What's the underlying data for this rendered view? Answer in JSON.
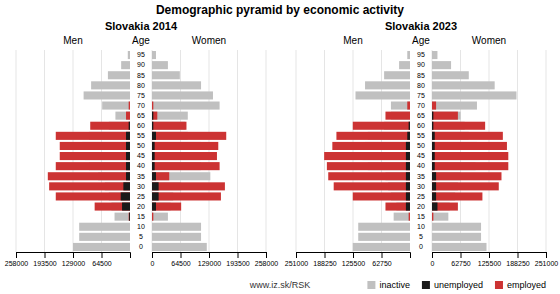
{
  "chart_data": [
    {
      "type": "bar",
      "orientation": "horizontal",
      "stacked": false,
      "grid": true,
      "title": "Demographic pyramid by economic activity",
      "subtitle": "Slovakia 2014",
      "ylabel": "Age",
      "annotation": "www.iz.sk/RSK",
      "categories": [
        "0",
        "5",
        "10",
        "15",
        "20",
        "25",
        "30",
        "35",
        "40",
        "45",
        "50",
        "55",
        "60",
        "65",
        "70",
        "75",
        "80",
        "85",
        "90",
        "95"
      ],
      "groups": [
        {
          "name": "Men",
          "xlim": [
            258000,
            0
          ],
          "xticks": [
            258000,
            193500,
            129000,
            64500
          ]
        },
        {
          "name": "Women",
          "xlim": [
            0,
            258000
          ],
          "xticks": [
            0,
            64500,
            129000,
            193500,
            258000
          ]
        }
      ],
      "series": [
        {
          "name": "inactive",
          "color": "#c0c0c0",
          "values": [
            [
              129000,
              115000,
              115000,
              35000,
              42000,
              48000,
              57000,
              72000,
              93000,
              102000,
              108000,
              93000,
              48000,
              33000,
              63000,
              105000,
              88000,
              50000,
              20000,
              5000
            ],
            [
              124000,
              111000,
              111000,
              36000,
              42000,
              48000,
              66000,
              132000,
              111000,
              111000,
              111000,
              81000,
              75000,
              81000,
              153000,
              138000,
              111000,
              63000,
              36000,
              9000
            ]
          ]
        },
        {
          "name": "unemployed",
          "color": "#1a1a1a",
          "values": [
            [
              0,
              0,
              0,
              2000,
              18000,
              21000,
              15000,
              9000,
              9000,
              9000,
              9000,
              9000,
              3000,
              0,
              0,
              0,
              0,
              0,
              0,
              0
            ],
            [
              0,
              0,
              0,
              0,
              9000,
              15000,
              15000,
              9000,
              6000,
              6000,
              6000,
              9000,
              3000,
              3000,
              0,
              0,
              0,
              0,
              0,
              0
            ]
          ]
        },
        {
          "name": "employed",
          "color": "#cc3333",
          "values": [
            [
              0,
              0,
              0,
              3000,
              80000,
              168000,
              183000,
              186000,
              168000,
              159000,
              159000,
              168000,
              90000,
              9000,
              3000,
              0,
              0,
              0,
              0,
              0
            ],
            [
              0,
              0,
              0,
              3000,
              66000,
              156000,
              165000,
              39000,
              153000,
              147000,
              150000,
              168000,
              78000,
              12000,
              3000,
              0,
              0,
              0,
              0,
              0
            ]
          ]
        }
      ]
    },
    {
      "type": "bar",
      "orientation": "horizontal",
      "stacked": false,
      "grid": true,
      "subtitle": "Slovakia 2023",
      "ylabel": "Age",
      "legend": "bottom",
      "categories": [
        "0",
        "5",
        "10",
        "15",
        "20",
        "25",
        "30",
        "35",
        "40",
        "45",
        "50",
        "55",
        "60",
        "65",
        "70",
        "75",
        "80",
        "85",
        "90",
        "95"
      ],
      "groups": [
        {
          "name": "Men",
          "xlim": [
            251000,
            0
          ],
          "xticks": [
            251000,
            188250,
            125500,
            62750
          ]
        },
        {
          "name": "Women",
          "xlim": [
            0,
            251000
          ],
          "xticks": [
            0,
            62750,
            125500,
            188250,
            251000
          ]
        }
      ],
      "series": [
        {
          "name": "inactive",
          "color": "#c0c0c0",
          "values": [
            [
              126000,
              114000,
              114000,
              36000,
              30000,
              42000,
              48000,
              54000,
              93000,
              105000,
              99000,
              93000,
              57000,
              42000,
              42000,
              120000,
              99000,
              57000,
              24000,
              6000
            ],
            [
              120000,
              108000,
              108000,
              36000,
              39000,
              51000,
              57000,
              63000,
              96000,
              105000,
              99000,
              81000,
              72000,
              63000,
              99000,
              186000,
              138000,
              81000,
              42000,
              12000
            ]
          ]
        },
        {
          "name": "unemployed",
          "color": "#1a1a1a",
          "values": [
            [
              0,
              0,
              0,
              0,
              9000,
              9000,
              9000,
              9000,
              9000,
              9000,
              9000,
              6000,
              3000,
              0,
              0,
              0,
              0,
              0,
              0,
              0
            ],
            [
              0,
              0,
              0,
              0,
              12000,
              9000,
              9000,
              9000,
              6000,
              6000,
              6000,
              6000,
              3000,
              3000,
              0,
              0,
              0,
              0,
              0,
              0
            ]
          ]
        },
        {
          "name": "employed",
          "color": "#cc3333",
          "values": [
            [
              0,
              0,
              0,
              3000,
              54000,
              126000,
              168000,
              180000,
              183000,
              189000,
              171000,
              162000,
              126000,
              54000,
              6000,
              0,
              0,
              0,
              0,
              0
            ],
            [
              0,
              0,
              0,
              3000,
              57000,
              111000,
              147000,
              153000,
              168000,
              168000,
              165000,
              156000,
              117000,
              57000,
              9000,
              0,
              0,
              0,
              0,
              0
            ]
          ]
        }
      ]
    }
  ]
}
